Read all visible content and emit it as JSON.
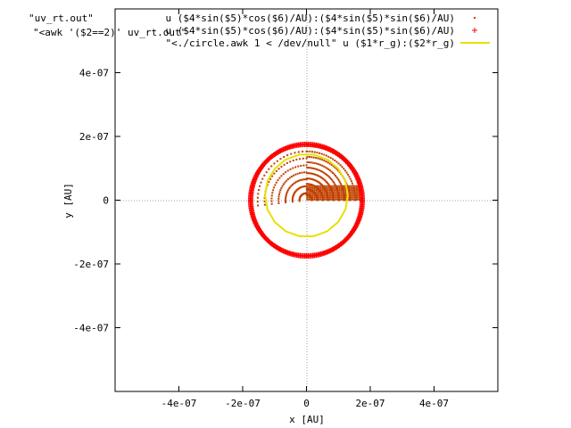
{
  "chart_data": {
    "type": "scatter",
    "xlabel": "x [AU]",
    "ylabel": "y [AU]",
    "xlim": [
      -6e-07,
      6e-07
    ],
    "ylim": [
      -6e-07,
      6e-07
    ],
    "xticks": [
      {
        "value": -4e-07,
        "label": "-4e-07"
      },
      {
        "value": -2e-07,
        "label": "-2e-07"
      },
      {
        "value": 0,
        "label": "0"
      },
      {
        "value": 2e-07,
        "label": "2e-07"
      },
      {
        "value": 4e-07,
        "label": "4e-07"
      }
    ],
    "yticks": [
      {
        "value": 4e-07,
        "label": "4e-07"
      },
      {
        "value": 2e-07,
        "label": "2e-07"
      },
      {
        "value": 0,
        "label": "0"
      },
      {
        "value": -2e-07,
        "label": "-2e-07"
      },
      {
        "value": -4e-07,
        "label": "-4e-07"
      }
    ],
    "zero_axes": "dotted",
    "legend_placement": "top-right",
    "legend_file_labels": [
      "\"uv_rt.out\"",
      "\"<awk '($2==2)' uv_rt.out\""
    ],
    "series": [
      {
        "name": "u ($4*sin($5)*cos($6)/AU):($4*sin($5)*sin($6)/AU)",
        "style": "dots",
        "color": "#c04000",
        "description_values": {
          "max_radius": 1.7e-07,
          "x_range": [
            -1.8e-07,
            1.7e-07
          ],
          "y_range": [
            -2.5e-08,
            1.7e-07
          ]
        }
      },
      {
        "name": "u ($4*sin($5)*cos($6)/AU):($4*sin($5)*sin($6)/AU)",
        "style": "points",
        "color": "#ff0000",
        "description_values": {
          "shape": "circle",
          "center": [
            0,
            0
          ],
          "radius": 1.75e-07
        }
      },
      {
        "name": "\"<./circle.awk 1 < /dev/null\" u ($1*r_g):($2*r_g)",
        "style": "lines",
        "color": "#e8e000",
        "description_values": {
          "shape": "circle",
          "center": [
            0,
            1.5e-08
          ],
          "radius": 1.3e-07
        }
      }
    ]
  }
}
